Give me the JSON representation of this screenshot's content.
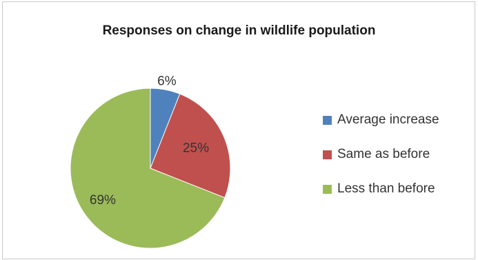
{
  "chart_data": {
    "type": "pie",
    "title": "Responses on change in wildlife population",
    "categories": [
      "Average increase",
      "Same as before",
      "Less than before"
    ],
    "values": [
      6,
      25,
      69
    ],
    "data_labels": [
      "6%",
      "25%",
      "69%"
    ],
    "colors": [
      "#4f81bd",
      "#c0504d",
      "#9bbb59"
    ],
    "legend_position": "right"
  }
}
